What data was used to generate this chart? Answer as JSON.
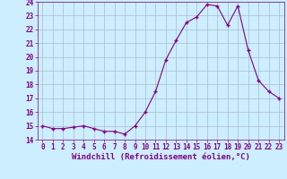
{
  "x": [
    0,
    1,
    2,
    3,
    4,
    5,
    6,
    7,
    8,
    9,
    10,
    11,
    12,
    13,
    14,
    15,
    16,
    17,
    18,
    19,
    20,
    21,
    22,
    23
  ],
  "y": [
    15.0,
    14.8,
    14.8,
    14.9,
    15.0,
    14.8,
    14.6,
    14.6,
    14.4,
    15.0,
    16.0,
    17.5,
    19.8,
    21.2,
    22.5,
    22.9,
    23.8,
    23.7,
    22.3,
    23.7,
    20.5,
    18.3,
    17.5,
    17.0
  ],
  "xlim": [
    -0.5,
    23.5
  ],
  "ylim": [
    14,
    24
  ],
  "yticks": [
    14,
    15,
    16,
    17,
    18,
    19,
    20,
    21,
    22,
    23,
    24
  ],
  "xticks": [
    0,
    1,
    2,
    3,
    4,
    5,
    6,
    7,
    8,
    9,
    10,
    11,
    12,
    13,
    14,
    15,
    16,
    17,
    18,
    19,
    20,
    21,
    22,
    23
  ],
  "xlabel": "Windchill (Refroidissement éolien,°C)",
  "line_color": "#800080",
  "marker_color": "#800080",
  "bg_color": "#cceeff",
  "grid_color": "#aabbcc",
  "label_fontsize": 6.5,
  "tick_fontsize": 5.5
}
